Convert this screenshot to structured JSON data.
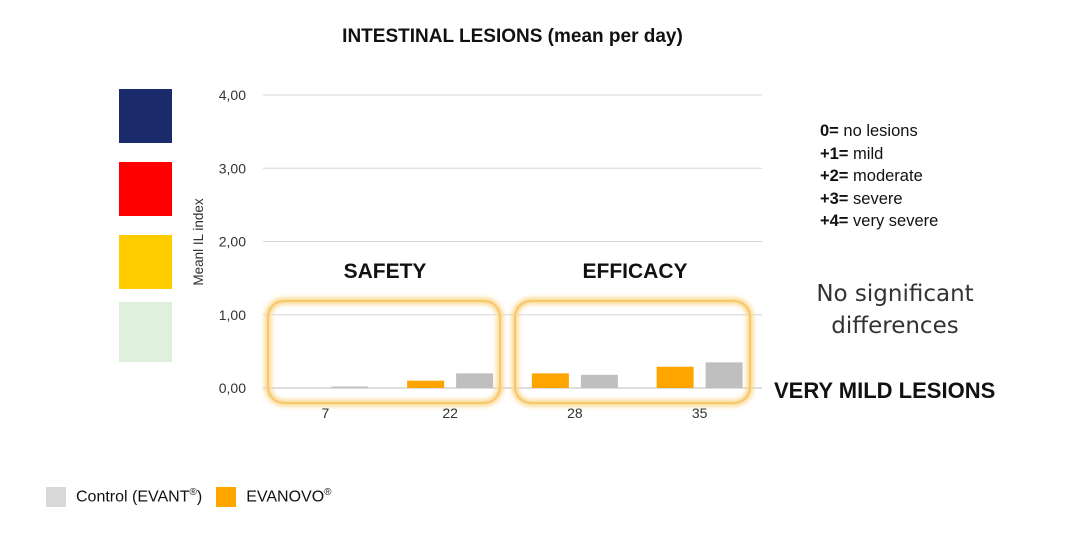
{
  "chart_data": {
    "type": "bar",
    "title": "INTESTINAL LESIONS (mean per day)",
    "ylabel": "Meanl IL index",
    "xlabel": "",
    "ylim": [
      0,
      4
    ],
    "yticks": [
      "0,00",
      "1,00",
      "2,00",
      "3,00",
      "4,00"
    ],
    "categories": [
      "7",
      "22",
      "28",
      "35"
    ],
    "series": [
      {
        "name": "EVANOVO®",
        "color": "#FFA500",
        "values": [
          0,
          0.1,
          0.2,
          0.29
        ]
      },
      {
        "name": "Control (EVANT®)",
        "color": "#BFBFBF",
        "values": [
          0.02,
          0.2,
          0.18,
          0.35
        ]
      }
    ],
    "grid": true,
    "group_labels": [
      "SAFETY",
      "EFFICACY"
    ],
    "group_color": "#FAD78A"
  },
  "severity_colors": [
    "#1B2A6B",
    "#FF0000",
    "#FFCC00",
    "#DFF1DC"
  ],
  "scale": [
    {
      "key": "0=",
      "text": " no lesions"
    },
    {
      "key": "+1=",
      "text": " mild"
    },
    {
      "key": "+2=",
      "text": " moderate"
    },
    {
      "key": "+3=",
      "text": " severe"
    },
    {
      "key": "+4=",
      "text": " very severe"
    }
  ],
  "note_line1": "No significant",
  "note_line2": "differences",
  "very_mild": "VERY MILD LESIONS",
  "legend": {
    "control": {
      "label": "Control (EVANT",
      "sup": "®",
      "suffix": ")",
      "color": "#D9D9D9"
    },
    "evanovo": {
      "label": "EVANOVO",
      "sup": "®",
      "color": "#FFA500"
    }
  }
}
